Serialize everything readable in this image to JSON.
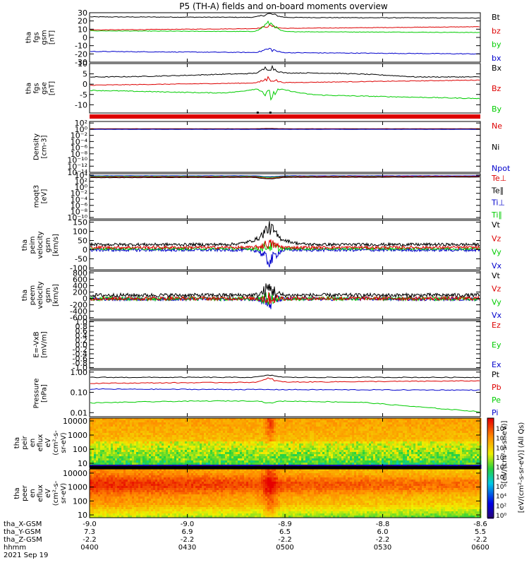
{
  "title": "P5 (TH-A) fields and on-board moments overview",
  "colors": {
    "black": "#000000",
    "red": "#dd0000",
    "green": "#00cc00",
    "blue": "#0000cc"
  },
  "panels": [
    {
      "id": "fgs-gsm",
      "ylabel": [
        "tha",
        "fgs",
        "gsm",
        "[nT]"
      ],
      "ticks": [
        {
          "v": 30,
          "t": "30"
        },
        {
          "v": 20,
          "t": "20"
        },
        {
          "v": 10,
          "t": "10"
        },
        {
          "v": 0,
          "t": "0"
        },
        {
          "v": -10,
          "t": "-10"
        },
        {
          "v": -20,
          "t": "-20"
        },
        {
          "v": -30,
          "t": "-30"
        }
      ],
      "ylim": [
        -30,
        30
      ],
      "legend": [
        {
          "t": "Bt",
          "c": "black"
        },
        {
          "t": "bz",
          "c": "red"
        },
        {
          "t": "by",
          "c": "green"
        },
        {
          "t": "bx",
          "c": "blue"
        }
      ]
    },
    {
      "id": "fgs-gse",
      "ylabel": [
        "tha",
        "fgs",
        "gse",
        "[nT]"
      ],
      "ticks": [
        {
          "v": 10,
          "t": "10"
        },
        {
          "v": 5,
          "t": "5"
        },
        {
          "v": 0,
          "t": "0"
        },
        {
          "v": -5,
          "t": "-5"
        },
        {
          "v": -10,
          "t": "-10"
        }
      ],
      "ylim": [
        -14,
        10
      ],
      "legend": [
        {
          "t": "Bx",
          "c": "black"
        },
        {
          "t": "Bz",
          "c": "red"
        },
        {
          "t": "By",
          "c": "green"
        }
      ]
    },
    {
      "id": "density",
      "ylabel": [
        "Density",
        "[cm-3]"
      ],
      "ticks": [
        {
          "v": 2,
          "t": "10²"
        },
        {
          "v": 0,
          "t": "10⁰"
        },
        {
          "v": -2,
          "t": "10⁻²"
        },
        {
          "v": -4,
          "t": "10⁻⁴"
        },
        {
          "v": -6,
          "t": "10⁻⁶"
        },
        {
          "v": -8,
          "t": "10⁻⁸"
        },
        {
          "v": -10,
          "t": "10⁻¹⁰"
        },
        {
          "v": -12,
          "t": "10⁻¹²"
        },
        {
          "v": -14,
          "t": "10⁻¹⁴"
        }
      ],
      "ylim": [
        -14,
        2.5
      ],
      "legend": [
        {
          "t": "Ne",
          "c": "red"
        },
        {
          "t": "Ni",
          "c": "black"
        },
        {
          "t": "Npot",
          "c": "blue"
        }
      ]
    },
    {
      "id": "temperature",
      "ylabel": [
        "moqt3",
        "[eV]"
      ],
      "ticks": [
        {
          "v": 4,
          "t": "10⁴"
        },
        {
          "v": 2,
          "t": "10²"
        },
        {
          "v": 0,
          "t": "10⁰"
        },
        {
          "v": -2,
          "t": "10⁻²"
        },
        {
          "v": -4,
          "t": "10⁻⁴"
        },
        {
          "v": -6,
          "t": "10⁻⁶"
        },
        {
          "v": -8,
          "t": "10⁻⁸"
        },
        {
          "v": -10,
          "t": "10⁻¹⁰"
        }
      ],
      "ylim": [
        -10.5,
        4.5
      ],
      "legend": [
        {
          "t": "Te⊥",
          "c": "red"
        },
        {
          "t": "Te∥",
          "c": "black"
        },
        {
          "t": "Ti⊥",
          "c": "blue"
        },
        {
          "t": "Ti∥",
          "c": "green"
        }
      ]
    },
    {
      "id": "peim-velocity",
      "ylabel": [
        "tha",
        "peim",
        "velocity",
        "gsm",
        "[km/s]"
      ],
      "ticks": [
        {
          "v": 150,
          "t": "150"
        },
        {
          "v": 100,
          "t": "100"
        },
        {
          "v": 50,
          "t": "50"
        },
        {
          "v": 0,
          "t": "0"
        },
        {
          "v": -50,
          "t": "-50"
        },
        {
          "v": -100,
          "t": "-100"
        }
      ],
      "ylim": [
        -110,
        160
      ],
      "legend": [
        {
          "t": "Vt",
          "c": "black"
        },
        {
          "t": "Vz",
          "c": "red"
        },
        {
          "t": "Vy",
          "c": "green"
        },
        {
          "t": "Vx",
          "c": "blue"
        }
      ]
    },
    {
      "id": "peem-velocity",
      "ylabel": [
        "tha",
        "peem",
        "velocity",
        "gsm",
        "[km/s]"
      ],
      "ticks": [
        {
          "v": 800,
          "t": "800"
        },
        {
          "v": 600,
          "t": "600"
        },
        {
          "v": 400,
          "t": "400"
        },
        {
          "v": 200,
          "t": "200"
        },
        {
          "v": 0,
          "t": "0"
        },
        {
          "v": -200,
          "t": "-200"
        },
        {
          "v": -400,
          "t": "-400"
        },
        {
          "v": -600,
          "t": "-600"
        }
      ],
      "ylim": [
        -650,
        850
      ],
      "legend": [
        {
          "t": "Vt",
          "c": "black"
        },
        {
          "t": "Vz",
          "c": "red"
        },
        {
          "t": "Vy",
          "c": "green"
        },
        {
          "t": "Vx",
          "c": "blue"
        }
      ]
    },
    {
      "id": "efield",
      "ylabel": [
        "E=-VxB",
        "[mV/m]"
      ],
      "ticks": [
        {
          "v": 1.0,
          "t": "1.0"
        },
        {
          "v": 0.8,
          "t": "0.8"
        },
        {
          "v": 0.6,
          "t": "0.6"
        },
        {
          "v": 0.4,
          "t": "0.4"
        },
        {
          "v": 0.2,
          "t": "0.2"
        },
        {
          "v": 0.0,
          "t": "0.0"
        },
        {
          "v": -0.2,
          "t": "-0.2"
        },
        {
          "v": -0.4,
          "t": "-0.4"
        },
        {
          "v": -0.6,
          "t": "-0.6"
        },
        {
          "v": -0.8,
          "t": "-0.8"
        },
        {
          "v": -1.0,
          "t": "-1.0"
        }
      ],
      "ylim": [
        -1.05,
        1.05
      ],
      "legend": [
        {
          "t": "Ez",
          "c": "red"
        },
        {
          "t": "Ey",
          "c": "green"
        },
        {
          "t": "Ex",
          "c": "blue"
        }
      ]
    },
    {
      "id": "pressure",
      "ylabel": [
        "Pressure",
        "[nPa]"
      ],
      "ticks": [
        {
          "v": 0,
          "t": "1.00"
        },
        {
          "v": -1,
          "t": "0.10"
        },
        {
          "v": -2,
          "t": "0.01"
        }
      ],
      "ylim": [
        -2.2,
        0.1
      ],
      "legend": [
        {
          "t": "Pt",
          "c": "black"
        },
        {
          "t": "Pb",
          "c": "red"
        },
        {
          "t": "Pe",
          "c": "green"
        },
        {
          "t": "Pi",
          "c": "blue"
        }
      ]
    },
    {
      "id": "peir-spec",
      "ylabel": [
        "tha",
        "peir",
        "en",
        "eflux",
        "eV",
        "(cm²-s-",
        "sr-eV)"
      ],
      "ticks": [
        {
          "v": 4,
          "t": "10000"
        },
        {
          "v": 3,
          "t": "1000"
        },
        {
          "v": 2,
          "t": "100"
        },
        {
          "v": 1,
          "t": "10"
        }
      ],
      "ylim": [
        0.7,
        4.2
      ],
      "legend": []
    },
    {
      "id": "peer-spec",
      "ylabel": [
        "tha",
        "peer",
        "en",
        "eflux",
        "eV",
        "(cm²-s-",
        "sr-eV)"
      ],
      "ticks": [
        {
          "v": 4,
          "t": "10000"
        },
        {
          "v": 3,
          "t": "1000"
        },
        {
          "v": 2,
          "t": "100"
        },
        {
          "v": 1,
          "t": "10"
        }
      ],
      "ylim": [
        0.8,
        4.3
      ],
      "legend": []
    }
  ],
  "colorbar": {
    "ticks": [
      "10⁸",
      "10⁶",
      "10⁴",
      "10²",
      "10⁰",
      "10⁸",
      "10⁶",
      "10⁴",
      "10²",
      "10⁰"
    ],
    "label": "[eV/(cm²-s-sr-eV)] (All Qs)",
    "label_overlay": "[eV/(cm²-s-sr-eV)]"
  },
  "xaxis": {
    "row_labels": [
      "tha_X-GSM",
      "tha_Y-GSM",
      "tha_Z-GSM",
      "hhmm",
      "2021 Sep 19"
    ],
    "columns": [
      {
        "x": "-9.0",
        "y": "7.3",
        "z": "-2.2",
        "t": "0400"
      },
      {
        "x": "-9.0",
        "y": "6.9",
        "z": "-2.2",
        "t": "0430"
      },
      {
        "x": "-8.9",
        "y": "6.5",
        "z": "-2.2",
        "t": "0500"
      },
      {
        "x": "-8.8",
        "y": "6.0",
        "z": "-2.2",
        "t": "0530"
      },
      {
        "x": "-8.6",
        "y": "5.5",
        "z": "-2.2",
        "t": "0600"
      }
    ],
    "time_range_hours": [
      4.0,
      6.0
    ],
    "event_time_hours": 4.92
  },
  "chart_data": {
    "type": "line",
    "title": "P5 (TH-A) fields and on-board moments overview",
    "x_range_hhmm": [
      "0400",
      "0600"
    ],
    "date": "2021 Sep 19",
    "panels": [
      {
        "name": "tha fgs gsm [nT]",
        "ylim": [
          -30,
          30
        ],
        "series": [
          {
            "name": "Bt",
            "level": 25,
            "peak": 30
          },
          {
            "name": "bz",
            "level": 10,
            "peak": 13
          },
          {
            "name": "by",
            "level": 8,
            "peak": 22
          },
          {
            "name": "bx",
            "level": -18,
            "peak": -12
          }
        ]
      },
      {
        "name": "tha fgs gse [nT]",
        "ylim": [
          -14,
          10
        ],
        "series": [
          {
            "name": "Bx",
            "level": 4,
            "peak": 8
          },
          {
            "name": "Bz",
            "level": 0,
            "peak": 3
          },
          {
            "name": "By",
            "level": -3,
            "peak": -7
          }
        ]
      },
      {
        "name": "Density [cm-3]",
        "scale": "log",
        "ylim_exp": [
          -14,
          2
        ],
        "series": [
          {
            "name": "Ne",
            "value": 1.0
          },
          {
            "name": "Ni",
            "value": 1.0
          },
          {
            "name": "Npot",
            "value": 1.0
          }
        ]
      },
      {
        "name": "moqt3 [eV]",
        "scale": "log",
        "ylim_exp": [
          -10,
          4
        ],
        "series": [
          {
            "name": "Te⊥",
            "value": 3000
          },
          {
            "name": "Te∥",
            "value": 2000
          },
          {
            "name": "Ti⊥",
            "value": 6000
          },
          {
            "name": "Ti∥",
            "value": 5000
          }
        ]
      },
      {
        "name": "tha peim velocity gsm [km/s]",
        "ylim": [
          -110,
          160
        ],
        "series": [
          {
            "name": "Vt",
            "level": 30,
            "peak": 150
          },
          {
            "name": "Vz",
            "level": 15,
            "peak": 60
          },
          {
            "name": "Vy",
            "level": 5,
            "peak": 40
          },
          {
            "name": "Vx",
            "level": -5,
            "peak": -100
          }
        ]
      },
      {
        "name": "tha peem velocity gsm [km/s]",
        "ylim": [
          -650,
          850
        ],
        "series": [
          {
            "name": "Vt",
            "level": 100,
            "peak": 700
          },
          {
            "name": "Vz",
            "level": 0,
            "peak": 400
          },
          {
            "name": "Vy",
            "level": 0,
            "peak": 300
          },
          {
            "name": "Vx",
            "level": 0,
            "peak": -450
          }
        ]
      },
      {
        "name": "E=-VxB [mV/m]",
        "ylim": [
          -1.0,
          1.0
        ],
        "series": [
          {
            "name": "Ez"
          },
          {
            "name": "Ey"
          },
          {
            "name": "Ex"
          }
        ]
      },
      {
        "name": "Pressure [nPa]",
        "scale": "log",
        "ylim": [
          0.01,
          1.0
        ],
        "series": [
          {
            "name": "Pt",
            "level": 0.55
          },
          {
            "name": "Pb",
            "level": 0.3
          },
          {
            "name": "Pe",
            "level": 0.03
          },
          {
            "name": "Pi",
            "level": 0.14
          }
        ]
      },
      {
        "name": "tha peir en eflux",
        "type": "heatmap",
        "ylim": [
          10,
          10000
        ]
      },
      {
        "name": "tha peer en eflux",
        "type": "heatmap",
        "ylim": [
          10,
          10000
        ]
      }
    ]
  }
}
